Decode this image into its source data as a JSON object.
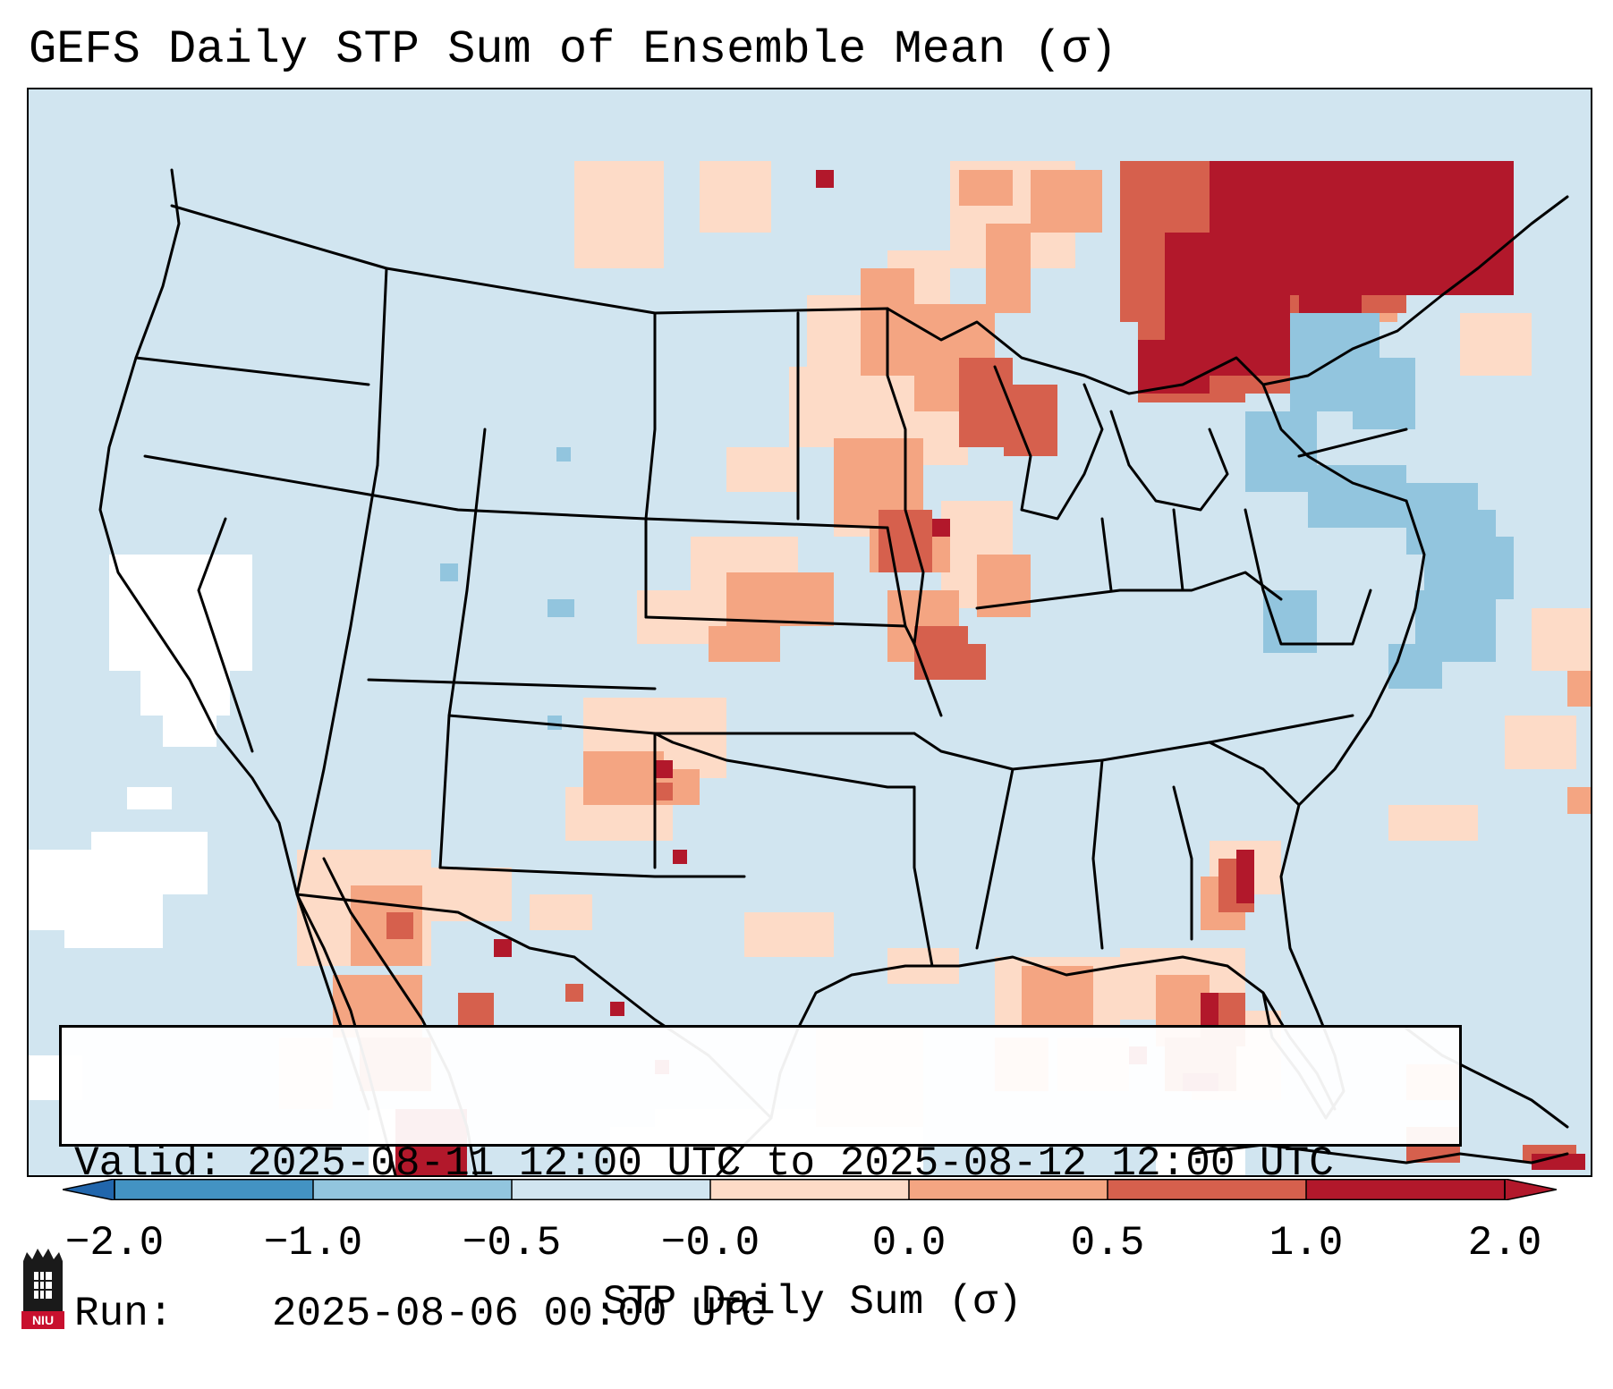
{
  "title": "GEFS Daily STP Sum of Ensemble Mean (σ)",
  "info": {
    "valid_label": "Valid:",
    "valid_value": "2025-08-11 12:00 UTC to 2025-08-12 12:00 UTC",
    "run_label": "Run:",
    "run_value": "2025-08-06 00:00 UTC"
  },
  "colorbar": {
    "label": "STP Daily Sum (σ)",
    "ticks": [
      "−2.0",
      "−1.0",
      "−0.5",
      "−0.0",
      "0.0",
      "0.5",
      "1.0",
      "2.0"
    ],
    "bin_colors": [
      "#4393c3",
      "#92c5de",
      "#d1e5f0",
      "#f7f7f7",
      "#fddbc7",
      "#f4a582",
      "#d6604d",
      "#b2182b"
    ],
    "extend_low_color": "#2166ac",
    "extend_high_color": "#b2182b"
  },
  "legend_values": {
    "min": -2.0,
    "max": 2.0,
    "boundaries": [
      -2.0,
      -1.0,
      -0.5,
      -0.0,
      0.0,
      0.5,
      1.0,
      2.0
    ]
  },
  "map_colors": {
    "background": "#d1e5f0",
    "neutral": "#ffffff",
    "light_red": "#fddbc7",
    "mid_red": "#f4a582",
    "red": "#d6604d",
    "dark_red": "#b2182b",
    "light_blue": "#92c5de"
  },
  "logo": {
    "text": "NIU"
  }
}
